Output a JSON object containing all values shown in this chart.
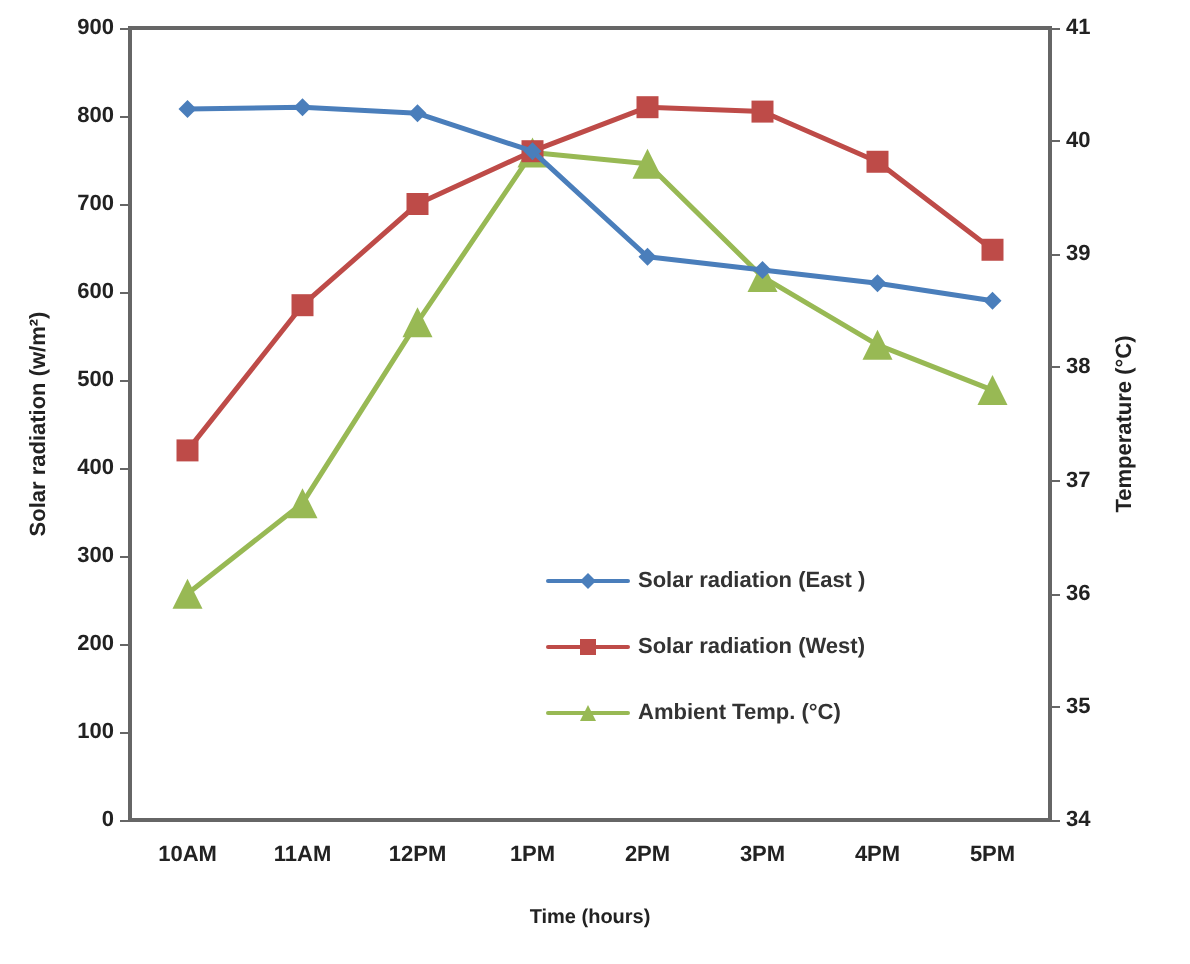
{
  "chart_data": {
    "type": "line",
    "xlabel": "Time (hours)",
    "ylabel": "Solar radiation (w/m²)",
    "y2label": "Temperature (°C)",
    "categories": [
      "10AM",
      "11AM",
      "12PM",
      "1PM",
      "2PM",
      "3PM",
      "4PM",
      "5PM"
    ],
    "series": [
      {
        "name": "Solar radiation (East )",
        "color": "#4a7ebb",
        "marker": "diamond",
        "values": [
          808,
          810,
          803,
          760,
          640,
          625,
          610,
          590
        ]
      },
      {
        "name": "Solar radiation (West)",
        "color": "#be4b48",
        "marker": "square",
        "values": [
          420,
          585,
          700,
          760,
          810,
          805,
          748,
          648
        ]
      },
      {
        "name": "Ambient Temp. (°C)",
        "color": "#98b954",
        "marker": "triangle",
        "axis": "y2",
        "values": [
          36.0,
          36.8,
          38.4,
          39.9,
          39.8,
          38.8,
          38.2,
          37.8
        ]
      }
    ],
    "ylim": [
      0,
      900
    ],
    "yticks": [
      0,
      100,
      200,
      300,
      400,
      500,
      600,
      700,
      800,
      900
    ],
    "y2lim": [
      34,
      41
    ],
    "y2ticks": [
      34,
      35,
      36,
      37,
      38,
      39,
      40,
      41
    ],
    "grid": false,
    "legend": "bottom right"
  }
}
